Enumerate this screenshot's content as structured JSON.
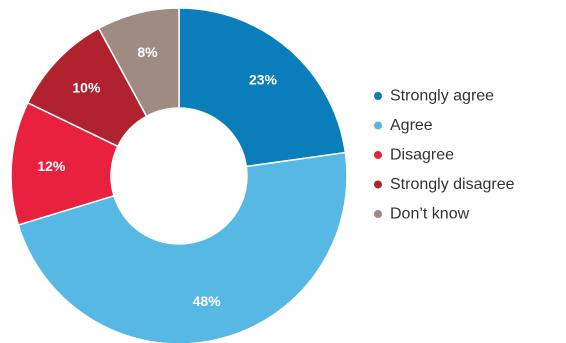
{
  "chart_data": {
    "type": "pie",
    "variant": "donut",
    "title": "",
    "categories": [
      "Strongly agree",
      "Agree",
      "Disagree",
      "Strongly disagree",
      "Don’t know"
    ],
    "values": [
      23,
      48,
      12,
      10,
      8
    ],
    "value_labels": [
      "23%",
      "48%",
      "12%",
      "10%",
      "8%"
    ],
    "colors": [
      "#0a7dbb",
      "#56b8e3",
      "#e8213f",
      "#b0222e",
      "#9e8b82"
    ],
    "legend_placement": "right"
  }
}
